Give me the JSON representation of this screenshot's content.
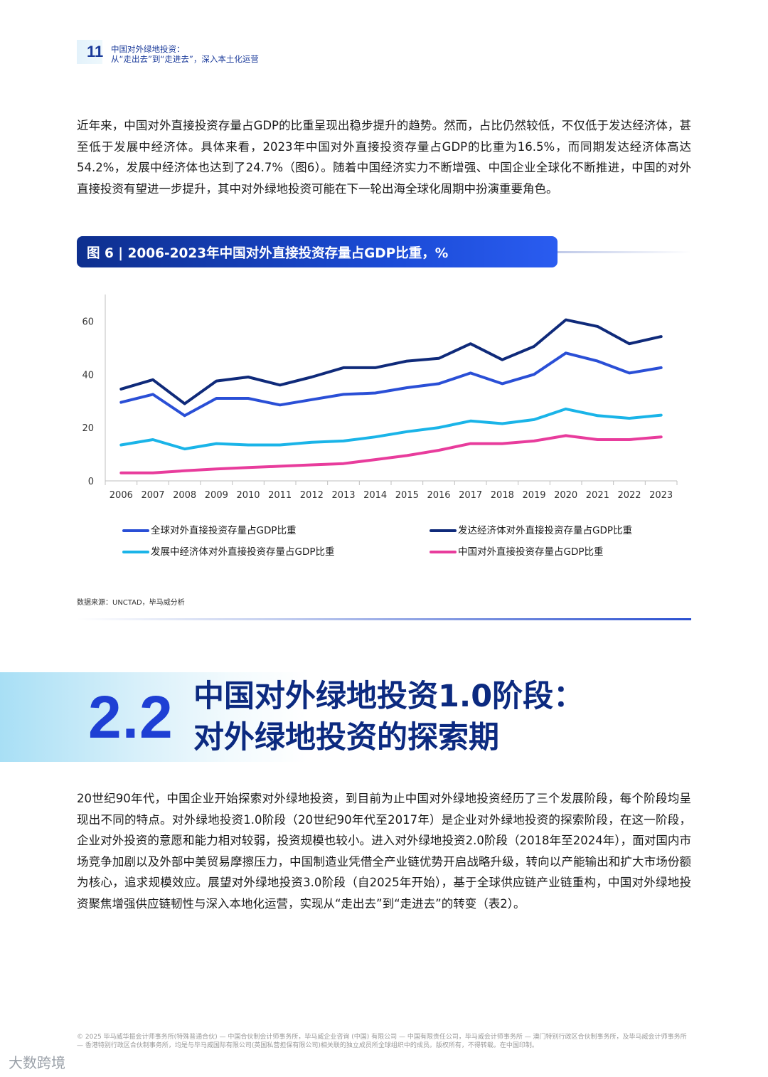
{
  "header": {
    "page_number": "11",
    "title_line1": "中国对外绿地投资：",
    "title_line2": "从“走出去”到“走进去”，深入本土化运营"
  },
  "intro_paragraph": "近年来，中国对外直接投资存量占GDP的比重呈现出稳步提升的趋势。然而，占比仍然较低，不仅低于发达经济体，甚至低于发展中经济体。具体来看，2023年中国对外直接投资存量占GDP的比重为16.5%，而同期发达经济体高达54.2%，发展中经济体也达到了24.7%（图6）。随着中国经济实力不断增强、中国企业全球化不断推进，中国的对外直接投资有望进一步提升，其中对外绿地投资可能在下一轮出海全球化周期中扮演重要角色。",
  "figure": {
    "title": "图 6 | 2006-2023年中国对外直接投资存量占GDP比重，%",
    "source": "数据来源：UNCTAD，毕马威分析"
  },
  "chart_data": {
    "type": "line",
    "title": "2006-2023年中国对外直接投资存量占GDP比重，%",
    "xlabel": "",
    "ylabel": "",
    "ylim": [
      0,
      70
    ],
    "yticks": [
      0,
      20,
      40,
      60
    ],
    "grid": false,
    "legend_position": "bottom",
    "x": [
      "2006",
      "2007",
      "2008",
      "2009",
      "2010",
      "2011",
      "2012",
      "2013",
      "2014",
      "2015",
      "2016",
      "2017",
      "2018",
      "2019",
      "2020",
      "2021",
      "2022",
      "2023"
    ],
    "series": [
      {
        "name": "全球对外直接投资存量占GDP比重",
        "color": "#2a4fd6",
        "values": [
          29.5,
          32.5,
          24.5,
          31.0,
          31.0,
          28.5,
          30.5,
          32.5,
          33.0,
          35.0,
          36.5,
          40.5,
          36.5,
          40.0,
          48.0,
          45.0,
          40.5,
          42.5
        ]
      },
      {
        "name": "发达经济体对外直接投资存量占GDP比重",
        "color": "#0f2a7a",
        "values": [
          34.5,
          38.0,
          29.0,
          37.5,
          39.0,
          36.0,
          39.0,
          42.5,
          42.5,
          45.0,
          46.0,
          51.5,
          45.5,
          50.5,
          60.5,
          58.0,
          51.5,
          54.2
        ]
      },
      {
        "name": "发展中经济体对外直接投资存量占GDP比重",
        "color": "#1ab4e8",
        "values": [
          13.5,
          15.5,
          12.0,
          14.0,
          13.5,
          13.5,
          14.5,
          15.0,
          16.5,
          18.5,
          20.0,
          22.5,
          21.5,
          23.0,
          27.0,
          24.5,
          23.5,
          24.7
        ]
      },
      {
        "name": "中国对外直接投资存量占GDP比重",
        "color": "#e83c9c",
        "values": [
          3.0,
          3.0,
          3.8,
          4.5,
          5.0,
          5.5,
          6.0,
          6.5,
          8.0,
          9.5,
          11.5,
          14.0,
          14.0,
          15.0,
          17.0,
          15.5,
          15.5,
          16.5
        ]
      }
    ]
  },
  "section": {
    "number": "2.2",
    "title_line1": "中国对外绿地投资1.0阶段：",
    "title_line2": "对外绿地投资的探索期"
  },
  "section_paragraph": "20世纪90年代，中国企业开始探索对外绿地投资，到目前为止中国对外绿地投资经历了三个发展阶段，每个阶段均呈现出不同的特点。对外绿地投资1.0阶段（20世纪90年代至2017年）是企业对外绿地投资的探索阶段，在这一阶段，企业对外投资的意愿和能力相对较弱，投资规模也较小。进入对外绿地投资2.0阶段（2018年至2024年），面对国内市场竞争加剧以及外部中美贸易摩擦压力，中国制造业凭借全产业链优势开启战略升级，转向以产能输出和扩大市场份额为核心，追求规模效应。展望对外绿地投资3.0阶段（自2025年开始），基于全球供应链产业链重构，中国对外绿地投资聚焦增强供应链韧性与深入本地化运营，实现从“走出去”到“走进去”的转变（表2）。",
  "footer": "© 2025 毕马威华振会计师事务所(特殊普通合伙) — 中国合伙制会计师事务所，毕马威企业咨询 (中国) 有限公司 — 中国有限责任公司，毕马威会计师事务所 — 澳门特别行政区合伙制事务所，及毕马威会计师事务所 — 香港特别行政区合伙制事务所，均是与毕马威国际有限公司(英国私营担保有限公司)相关联的独立成员所全球组织中的成员。版权所有，不得转载。在中国印制。",
  "watermark": "大数跨境"
}
